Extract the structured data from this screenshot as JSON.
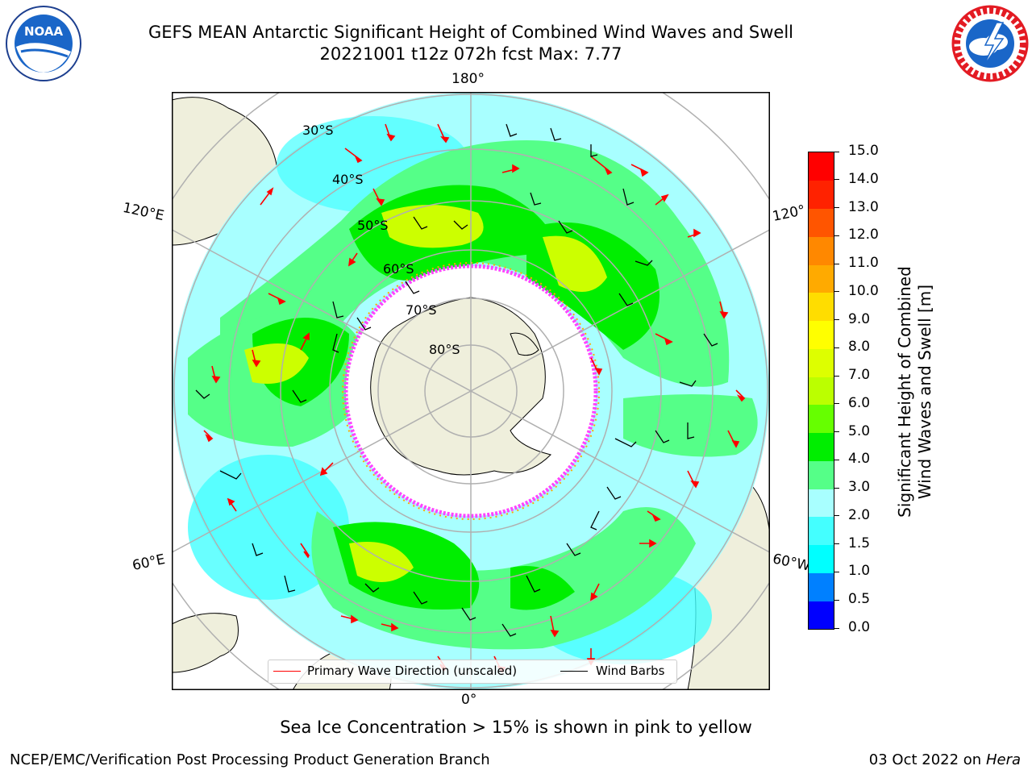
{
  "header": {
    "title_line1": "GEFS MEAN Antarctic Significant Height of Combined Wind Waves and Swell",
    "title_line2": "20221001 t12z 072h fcst   Max: 7.77"
  },
  "logos": {
    "left": {
      "text": "NOAA",
      "icon": "noaa-logo"
    },
    "right": {
      "icon": "nws-logo"
    }
  },
  "map": {
    "projection": "south-polar-stereographic",
    "longitude_labels": [
      "180°",
      "120°E",
      "120°",
      "60°E",
      "60°W",
      "0°"
    ],
    "latitude_labels": [
      "30°S",
      "40°S",
      "50°S",
      "60°S",
      "70°S",
      "80°S"
    ],
    "colors": {
      "land": "#efefdc",
      "ocean_low": "#88ffff",
      "ice": "#ffffff",
      "ice_edge": "#ff44ff",
      "wave_arrow": "#ff0000",
      "wind_barb": "#000000"
    }
  },
  "legend": {
    "items": [
      {
        "label": "Primary Wave Direction (unscaled)",
        "color": "#ff0000"
      },
      {
        "label": "Wind Barbs",
        "color": "#000000"
      }
    ]
  },
  "colorbar": {
    "label_line1": "Significant Height of Combined",
    "label_line2": "Wind Waves and Swell [m]",
    "ticks": [
      "0.0",
      "0.5",
      "1.0",
      "1.5",
      "2.0",
      "3.0",
      "4.0",
      "5.0",
      "6.0",
      "7.0",
      "8.0",
      "9.0",
      "10.0",
      "11.0",
      "12.0",
      "13.0",
      "14.0",
      "15.0"
    ],
    "colors": [
      "#0000ff",
      "#0080ff",
      "#00ffff",
      "#44ffff",
      "#a8ffff",
      "#55ff88",
      "#00ee00",
      "#66ff00",
      "#bbff00",
      "#ddff00",
      "#ffff00",
      "#ffdd00",
      "#ffaa00",
      "#ff8800",
      "#ff5500",
      "#ff2200",
      "#ff0000"
    ]
  },
  "notes": {
    "sea_ice": "Sea Ice Concentration > 15% is shown in pink to yellow"
  },
  "footer": {
    "left": "NCEP/EMC/Verification Post Processing Product Generation Branch",
    "right_date": "03 Oct 2022 on ",
    "right_host": "Hera"
  }
}
